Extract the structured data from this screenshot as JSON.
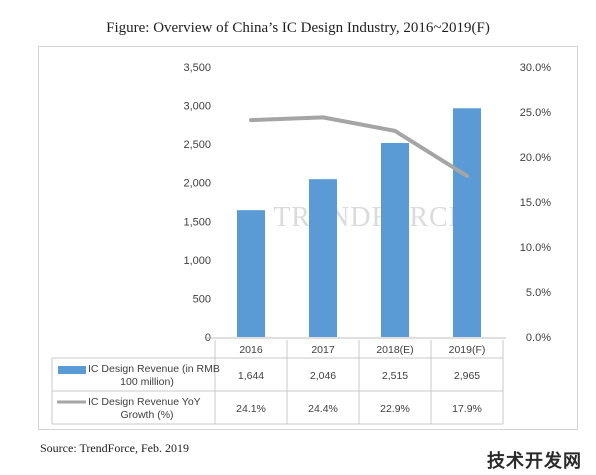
{
  "title": "Figure: Overview of China’s IC Design Industry, 2016~2019(F)",
  "source": "Source: TrendForce, Feb. 2019",
  "watermark_center": "TRENDFORCE",
  "watermark_corner": "技术开发网",
  "colors": {
    "bar": "#5b9bd5",
    "line": "#a5a5a5",
    "grid": "#d9d9d9",
    "border": "#d4d4d4"
  },
  "chart_data": {
    "type": "bar",
    "categories": [
      "2016",
      "2017",
      "2018(E)",
      "2019(F)"
    ],
    "left_axis": {
      "ylim": [
        0,
        3500
      ],
      "ticks": [
        "0",
        "500",
        "1,000",
        "1,500",
        "2,000",
        "2,500",
        "3,000",
        "3,500"
      ]
    },
    "right_axis": {
      "ylim": [
        0,
        30
      ],
      "ticks": [
        "0.0%",
        "5.0%",
        "10.0%",
        "15.0%",
        "20.0%",
        "25.0%",
        "30.0%"
      ]
    },
    "series": [
      {
        "name": "IC Design Revenue (in RMB 100 million)",
        "type": "bar",
        "axis": "left",
        "values": [
          1644,
          2046,
          2515,
          2965
        ],
        "labels": [
          "1,644",
          "2,046",
          "2,515",
          "2,965"
        ]
      },
      {
        "name": "IC Design Revenue YoY Growth (%)",
        "type": "line",
        "axis": "right",
        "values": [
          24.1,
          24.4,
          22.9,
          17.9
        ],
        "labels": [
          "24.1%",
          "24.4%",
          "22.9%",
          "17.9%"
        ]
      }
    ],
    "grid": false,
    "legend": "data-table"
  }
}
